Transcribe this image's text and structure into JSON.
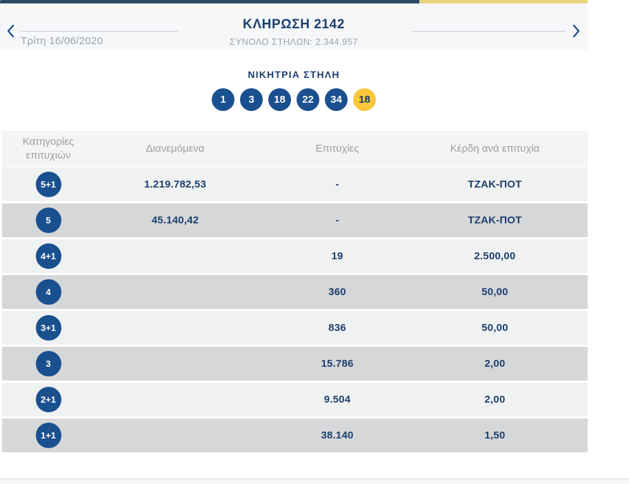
{
  "header": {
    "title": "ΚΛΗΡΩΣΗ 2142",
    "total_columns": "ΣΥΝΟΛΟ ΣΤΗΛΩΝ: 2.344.957",
    "date": "Τρίτη 16/06/2020"
  },
  "winning_column": {
    "title": "ΝΙΚΗΤΡΙΑ ΣΤΗΛΗ",
    "numbers": [
      "1",
      "3",
      "18",
      "22",
      "34"
    ],
    "joker": "18"
  },
  "table": {
    "headers": [
      "Κατηγορίες επιτυχιών",
      "Διανεμόμενα",
      "Επιτυχίες",
      "Κέρδη ανά επιτυχία"
    ],
    "rows": [
      {
        "category": "5+1",
        "distributed": "1.219.782,53",
        "wins": "-",
        "prize": "ΤΖΑΚ-ΠΟΤ"
      },
      {
        "category": "5",
        "distributed": "45.140,42",
        "wins": "-",
        "prize": "ΤΖΑΚ-ΠΟΤ"
      },
      {
        "category": "4+1",
        "distributed": "",
        "wins": "19",
        "prize": "2.500,00"
      },
      {
        "category": "4",
        "distributed": "",
        "wins": "360",
        "prize": "50,00"
      },
      {
        "category": "3+1",
        "distributed": "",
        "wins": "836",
        "prize": "50,00"
      },
      {
        "category": "3",
        "distributed": "",
        "wins": "15.786",
        "prize": "2,00"
      },
      {
        "category": "2+1",
        "distributed": "",
        "wins": "9.504",
        "prize": "2,00"
      },
      {
        "category": "1+1",
        "distributed": "",
        "wins": "38.140",
        "prize": "1,50"
      }
    ]
  },
  "colors": {
    "brand_navy": "#1c3f6e",
    "ball_blue": "#1a508f",
    "joker_yellow": "#f8c73c",
    "top_bar_blue": "#2c4a63",
    "top_bar_yellow": "#e8d47d",
    "muted_gray": "#9aa3ab"
  }
}
